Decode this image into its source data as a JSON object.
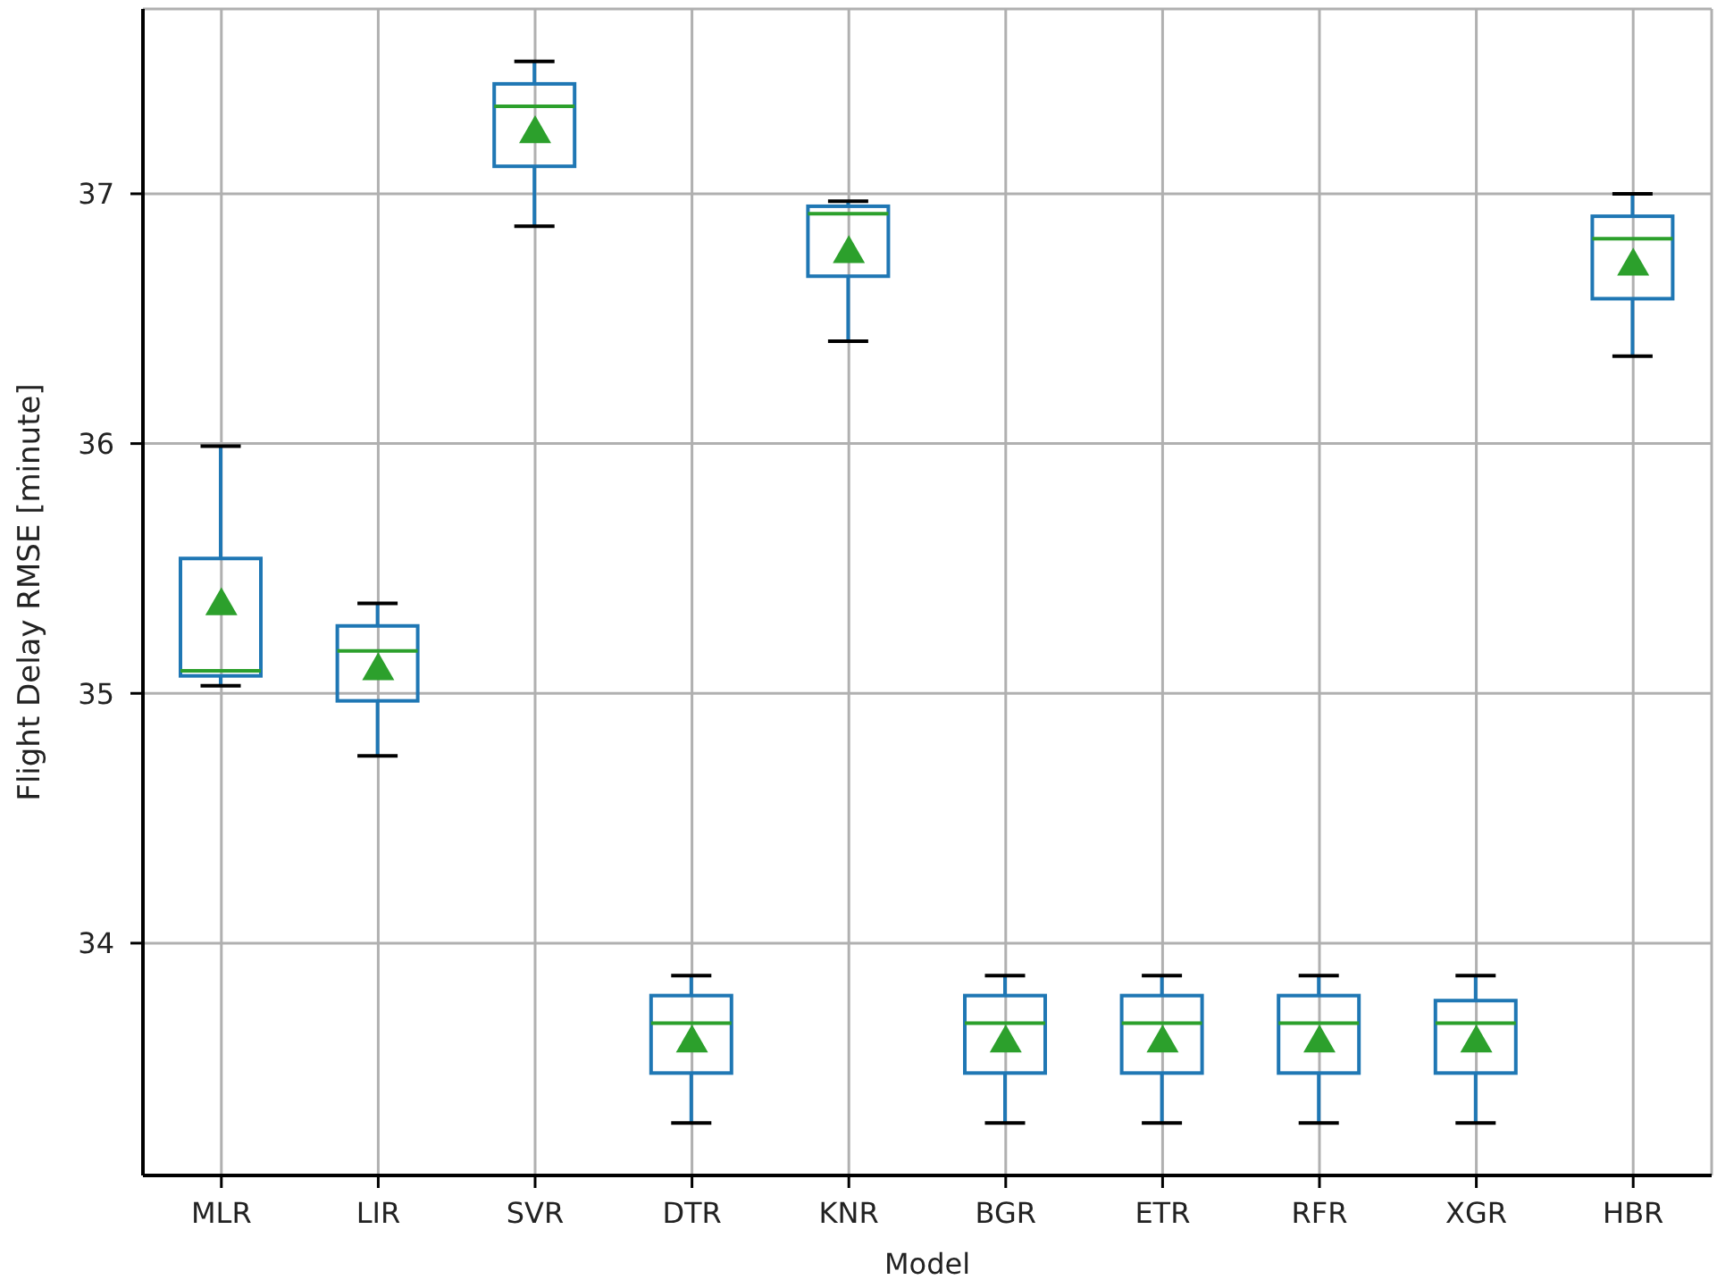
{
  "chart_data": {
    "type": "box",
    "xlabel": "Model",
    "ylabel": "Flight Delay RMSE [minute]",
    "categories": [
      "MLR",
      "LIR",
      "SVR",
      "DTR",
      "KNR",
      "BGR",
      "ETR",
      "RFR",
      "XGR",
      "HBR"
    ],
    "color": "#1f77b4",
    "marker": "triangle",
    "boxes": [
      {
        "low": 35.03,
        "q1": 35.07,
        "median": 35.09,
        "q3": 35.54,
        "high": 35.99,
        "mean": 35.35
      },
      {
        "low": 34.75,
        "q1": 34.97,
        "median": 35.17,
        "q3": 35.27,
        "high": 35.36,
        "mean": 35.09
      },
      {
        "low": 36.87,
        "q1": 37.11,
        "median": 37.35,
        "q3": 37.44,
        "high": 37.53,
        "mean": 37.24
      },
      {
        "low": 33.28,
        "q1": 33.48,
        "median": 33.68,
        "q3": 33.79,
        "high": 33.87,
        "mean": 33.6
      },
      {
        "low": 36.41,
        "q1": 36.67,
        "median": 36.92,
        "q3": 36.95,
        "high": 36.97,
        "mean": 36.76
      },
      {
        "low": 33.28,
        "q1": 33.48,
        "median": 33.68,
        "q3": 33.79,
        "high": 33.87,
        "mean": 33.6
      },
      {
        "low": 33.28,
        "q1": 33.48,
        "median": 33.68,
        "q3": 33.79,
        "high": 33.87,
        "mean": 33.6
      },
      {
        "low": 33.28,
        "q1": 33.48,
        "median": 33.68,
        "q3": 33.79,
        "high": 33.87,
        "mean": 33.6
      },
      {
        "low": 33.28,
        "q1": 33.48,
        "median": 33.68,
        "q3": 33.77,
        "high": 33.87,
        "mean": 33.6
      },
      {
        "low": 36.35,
        "q1": 36.58,
        "median": 36.82,
        "q3": 36.91,
        "high": 37.0,
        "mean": 36.71
      }
    ],
    "ylim": [
      33.07,
      37.74
    ],
    "yticks": [
      34,
      35,
      36,
      37
    ],
    "grid": true
  }
}
